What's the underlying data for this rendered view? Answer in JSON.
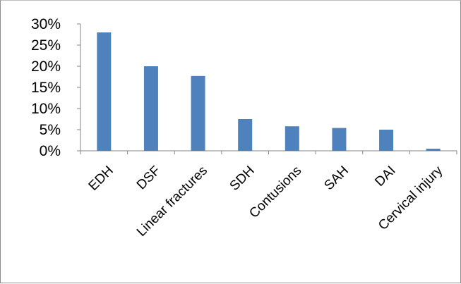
{
  "chart_data": {
    "type": "bar",
    "title": "",
    "xlabel": "",
    "ylabel": "",
    "categories": [
      "EDH",
      "DSF",
      "Linear fractures",
      "SDH",
      "Contusions",
      "SAH",
      "DAI",
      "Cervical injury"
    ],
    "values": [
      0.28,
      0.2,
      0.177,
      0.075,
      0.058,
      0.054,
      0.05,
      0.005
    ],
    "ylim": [
      0,
      0.3
    ],
    "yticks": [
      0,
      0.05,
      0.1,
      0.15,
      0.2,
      0.25,
      0.3
    ],
    "ytick_labels": [
      "0%",
      "5%",
      "10%",
      "15%",
      "20%",
      "25%",
      "30%"
    ],
    "grid": false,
    "legend": "none",
    "bar_color": "#4f81bd"
  }
}
